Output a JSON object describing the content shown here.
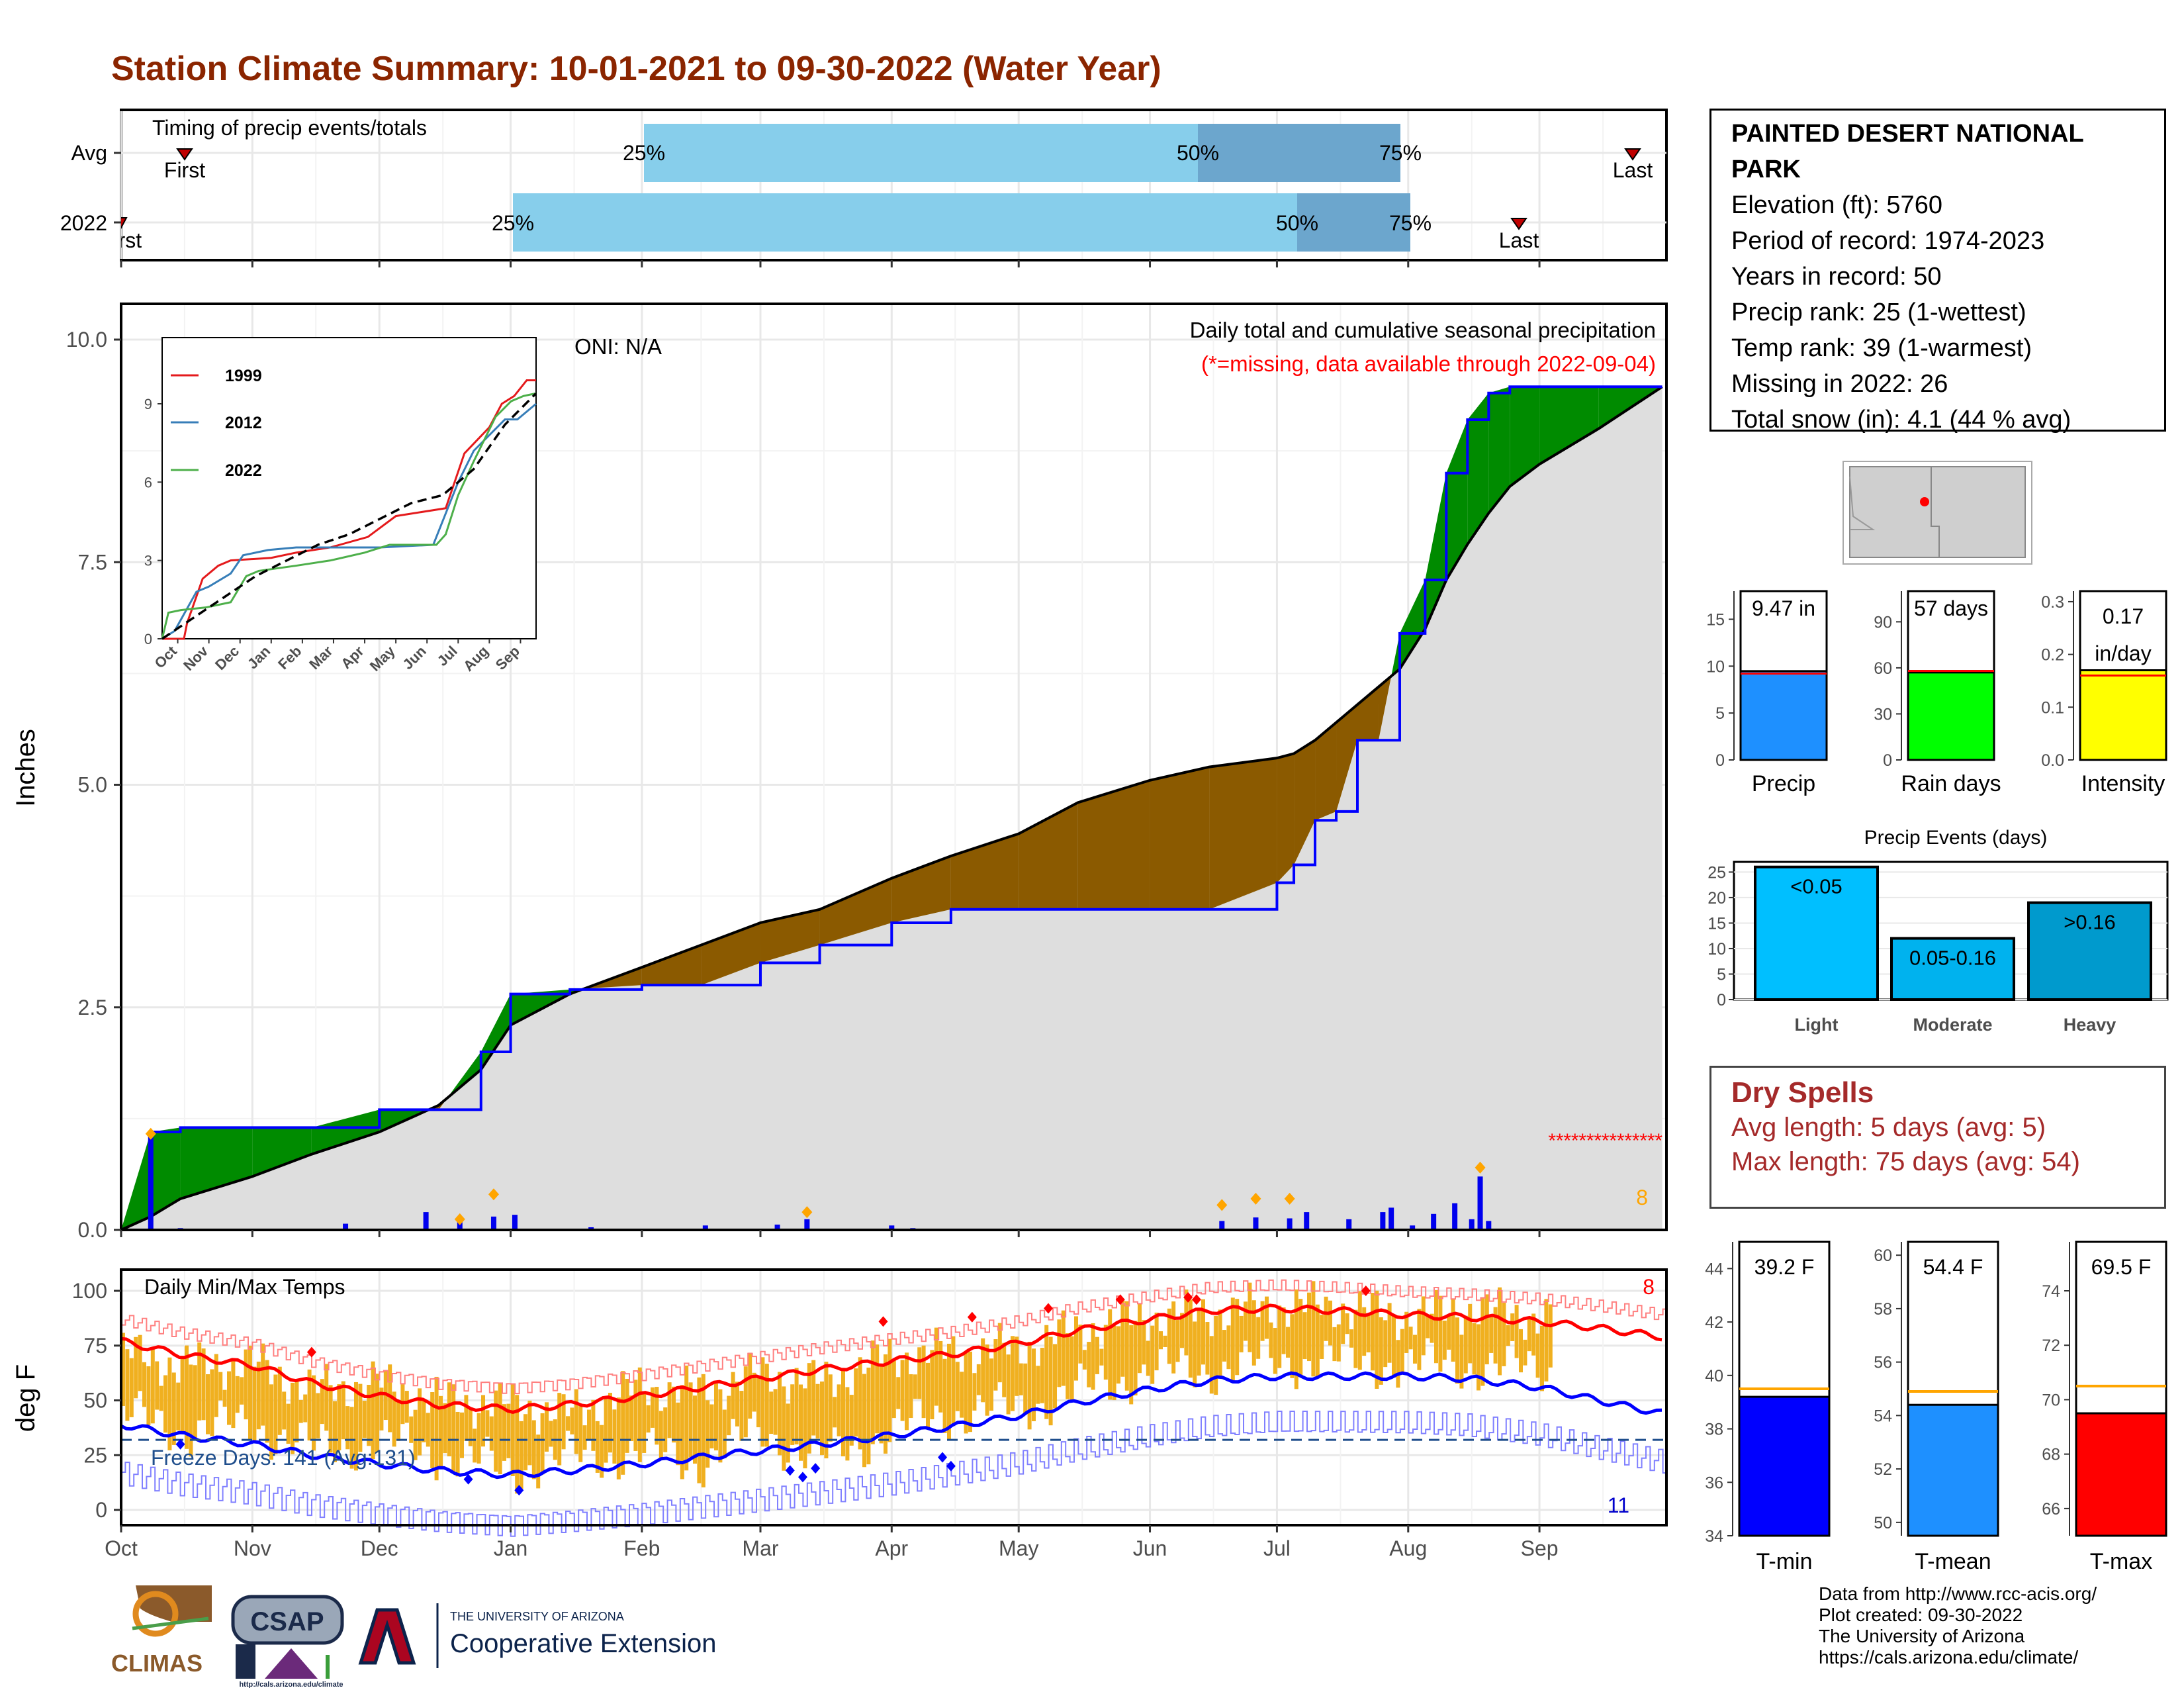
{
  "title": "Station Climate Summary: 10-01-2021 to 09-30-2022 (Water Year)",
  "timing": {
    "label": "Timing of precip events/totals",
    "rows": [
      "Avg",
      "2022"
    ],
    "avg": {
      "first": "First",
      "last": "Last",
      "p25": "25%",
      "p50": "50%",
      "p75": "75%"
    },
    "y2022": {
      "first": "First",
      "last": "Last",
      "p25": "25%",
      "p50": "50%",
      "p75": "75%"
    },
    "avg_dates": {
      "first": "2021-10-16",
      "p25": "2022-02-01",
      "p50": "2022-06-10",
      "p75": "2022-07-30",
      "last": "2022-09-21"
    },
    "y2022_dates": {
      "first": "2021-10-01",
      "p25": "2022-01-01",
      "p50": "2022-07-04",
      "p75": "2022-08-01",
      "last": "2022-08-27"
    }
  },
  "precip_panel": {
    "ylabel": "Inches",
    "yticks": [
      "0.0",
      "2.5",
      "5.0",
      "7.5",
      "10.0"
    ],
    "caption": "Daily total and cumulative seasonal precipitation",
    "missing_note": "(*=missing, data available through 2022-09-04)",
    "oni": "ONI: N/A",
    "extreme_count": "8"
  },
  "inset": {
    "years": [
      "1999",
      "2012",
      "2022"
    ],
    "colors": [
      "#e41a1c",
      "#377eb8",
      "#4daf4a"
    ],
    "yticks": [
      "0",
      "3",
      "6",
      "9"
    ],
    "months": [
      "Oct",
      "Nov",
      "Dec",
      "Jan",
      "Feb",
      "Mar",
      "Apr",
      "May",
      "Jun",
      "Jul",
      "Aug",
      "Sep"
    ]
  },
  "temp_panel": {
    "label": "Daily Min/Max Temps",
    "ylabel": "deg F",
    "yticks": [
      "0",
      "25",
      "50",
      "75",
      "100"
    ],
    "freeze_text": "Freeze Days: 141 (Avg:131)",
    "max_count": "8",
    "min_count": "11"
  },
  "x_months": [
    "Oct",
    "Nov",
    "Dec",
    "Jan",
    "Feb",
    "Mar",
    "Apr",
    "May",
    "Jun",
    "Jul",
    "Aug",
    "Sep"
  ],
  "station": {
    "name": "PAINTED DESERT NATIONAL PARK",
    "elevation": "Elevation (ft): 5760",
    "period": "Period of record: 1974-2023",
    "years": "Years in record: 50",
    "precip_rank": "Precip rank: 25 (1-wettest)",
    "temp_rank": "Temp rank: 39 (1-warmest)",
    "missing": "Missing in 2022: 26",
    "snow": "Total snow (in): 4.1 (44 % avg)"
  },
  "mini_bars": {
    "precip": {
      "label": "Precip",
      "value_text": "9.47 in",
      "yticks": [
        "0",
        "5",
        "10",
        "15"
      ]
    },
    "rain_days": {
      "label": "Rain days",
      "value_text": "57 days",
      "yticks": [
        "0",
        "30",
        "60",
        "90"
      ]
    },
    "intensity": {
      "label": "Intensity",
      "value_text_1": "0.17",
      "value_text_2": "in/day",
      "yticks": [
        "0.0",
        "0.1",
        "0.2",
        "0.3"
      ]
    }
  },
  "events": {
    "title": "Precip Events (days)",
    "yticks": [
      "0",
      "5",
      "10",
      "15",
      "20",
      "25"
    ],
    "bars": [
      {
        "label": "Light",
        "inner": "<0.05",
        "value": 26
      },
      {
        "label": "Moderate",
        "inner": "0.05-0.16",
        "value": 12
      },
      {
        "label": "Heavy",
        "inner": ">0.16",
        "value": 19
      }
    ]
  },
  "dry_spells": {
    "title": "Dry Spells",
    "avg": "Avg length: 5 days (avg: 5)",
    "max": "Max length: 75 days (avg: 54)"
  },
  "temp_bars": {
    "tmin": {
      "label": "T-min",
      "value_text": "39.2 F",
      "yticks": [
        "34",
        "36",
        "38",
        "40",
        "42",
        "44"
      ]
    },
    "tmean": {
      "label": "T-mean",
      "value_text": "54.4 F",
      "yticks": [
        "50",
        "52",
        "54",
        "56",
        "58",
        "60"
      ]
    },
    "tmax": {
      "label": "T-max",
      "value_text": "69.5 F",
      "yticks": [
        "66",
        "68",
        "70",
        "72",
        "74"
      ]
    }
  },
  "credits": {
    "line1": "Data from http://www.rcc-acis.org/",
    "line2": "Plot created: 09-30-2022",
    "line3": "The University of Arizona",
    "line4": "https://cals.arizona.edu/climate/"
  },
  "logos": {
    "climas": "CLIMAS",
    "csap": "CSAP",
    "csap_url": "http://cals.arizona.edu/climate",
    "ua_small": "THE UNIVERSITY OF ARIZONA",
    "ua_big": "Cooperative Extension"
  },
  "colors": {
    "title": "#8b2500",
    "above_normal": "#008b00",
    "below_normal": "#8b5a00",
    "cum_line": "#0000ff",
    "normal_fill": "#dedede",
    "timing_light": "#87ceeb",
    "timing_dark": "#6ca6cd",
    "tmax": "#ff0000",
    "tmin": "#0000ff",
    "range": "#f0b020",
    "extreme": "#ffa500"
  },
  "chart_data": [
    {
      "type": "area",
      "title": "Daily total and cumulative seasonal precipitation",
      "ylabel": "Inches",
      "ylim": [
        0,
        10
      ],
      "x_dates": [
        "2021-10-01",
        "2021-10-08",
        "2021-10-15",
        "2021-11-01",
        "2021-11-15",
        "2021-12-01",
        "2021-12-15",
        "2021-12-25",
        "2022-01-01",
        "2022-01-15",
        "2022-02-01",
        "2022-02-15",
        "2022-03-01",
        "2022-03-15",
        "2022-04-01",
        "2022-04-15",
        "2022-05-01",
        "2022-05-15",
        "2022-06-01",
        "2022-06-15",
        "2022-07-01",
        "2022-07-05",
        "2022-07-10",
        "2022-07-15",
        "2022-07-20",
        "2022-07-25",
        "2022-07-30",
        "2022-08-05",
        "2022-08-10",
        "2022-08-15",
        "2022-08-20",
        "2022-08-25",
        "2022-09-01",
        "2022-09-15",
        "2022-09-30"
      ],
      "series": [
        {
          "name": "2022",
          "values": [
            0.0,
            1.1,
            1.15,
            1.15,
            1.15,
            1.35,
            1.35,
            2.0,
            2.65,
            2.7,
            2.75,
            2.75,
            3.0,
            3.2,
            3.45,
            3.6,
            3.6,
            3.6,
            3.6,
            3.6,
            3.9,
            4.1,
            4.6,
            4.7,
            5.5,
            5.5,
            6.7,
            7.3,
            8.5,
            9.1,
            9.4,
            9.47,
            9.47,
            9.47,
            9.47
          ]
        },
        {
          "name": "Normal",
          "values": [
            0.0,
            0.15,
            0.35,
            0.6,
            0.85,
            1.1,
            1.4,
            1.8,
            2.3,
            2.65,
            2.95,
            3.2,
            3.45,
            3.6,
            3.95,
            4.2,
            4.45,
            4.8,
            5.05,
            5.2,
            5.3,
            5.35,
            5.5,
            5.7,
            5.9,
            6.1,
            6.3,
            6.75,
            7.3,
            7.7,
            8.05,
            8.35,
            8.6,
            9.0,
            9.47
          ]
        }
      ],
      "daily_dates": [
        "2021-10-08",
        "2021-10-15",
        "2021-11-23",
        "2021-12-12",
        "2021-12-20",
        "2021-12-28",
        "2022-01-02",
        "2022-01-20",
        "2022-02-16",
        "2022-03-05",
        "2022-03-12",
        "2022-04-01",
        "2022-04-06",
        "2022-06-18",
        "2022-06-26",
        "2022-07-04",
        "2022-07-08",
        "2022-07-18",
        "2022-07-26",
        "2022-07-28",
        "2022-08-02",
        "2022-08-07",
        "2022-08-12",
        "2022-08-16",
        "2022-08-18",
        "2022-08-20"
      ],
      "daily_values": [
        1.08,
        0.02,
        0.07,
        0.2,
        0.12,
        0.15,
        0.17,
        0.03,
        0.05,
        0.06,
        0.12,
        0.05,
        0.02,
        0.1,
        0.14,
        0.13,
        0.2,
        0.12,
        0.2,
        0.25,
        0.05,
        0.18,
        0.3,
        0.12,
        0.6,
        0.1
      ]
    },
    {
      "type": "bar",
      "title": "Precip Events (days)",
      "categories": [
        "Light",
        "Moderate",
        "Heavy"
      ],
      "values": [
        26,
        12,
        19
      ],
      "ylim": [
        0,
        27
      ]
    },
    {
      "type": "bar",
      "categories": [
        "Precip",
        "Rain days",
        "Intensity",
        "T-min",
        "T-mean",
        "T-max"
      ],
      "values": [
        9.47,
        57,
        0.17,
        39.2,
        54.4,
        69.5
      ],
      "normals": [
        9.2,
        58,
        0.16,
        39.5,
        54.9,
        70.5
      ]
    },
    {
      "type": "line",
      "title": "Daily Min/Max Temps",
      "ylabel": "deg F",
      "ylim": [
        -5,
        105
      ],
      "x_dates": [
        "2021-10-01",
        "2021-10-15",
        "2021-11-01",
        "2021-11-15",
        "2021-12-01",
        "2021-12-15",
        "2022-01-01",
        "2022-01-15",
        "2022-02-01",
        "2022-02-15",
        "2022-03-01",
        "2022-03-15",
        "2022-04-01",
        "2022-04-15",
        "2022-05-01",
        "2022-05-15",
        "2022-06-01",
        "2022-06-15",
        "2022-07-01",
        "2022-07-15",
        "2022-08-01",
        "2022-08-15",
        "2022-09-01",
        "2022-09-15",
        "2022-09-30"
      ],
      "series": [
        {
          "name": "Tmax normal",
          "values": [
            77,
            71,
            66,
            58,
            52,
            48,
            46,
            48,
            52,
            56,
            60,
            64,
            68,
            71,
            76,
            82,
            87,
            91,
            92,
            91,
            89,
            88,
            86,
            83,
            79
          ]
        },
        {
          "name": "Tmin normal",
          "values": [
            39,
            34,
            30,
            25,
            21,
            18,
            16,
            18,
            21,
            24,
            27,
            30,
            34,
            38,
            43,
            49,
            55,
            59,
            61,
            61,
            61,
            60,
            56,
            50,
            44
          ]
        },
        {
          "name": "Daily Tmax",
          "values": [
            72,
            66,
            67,
            55,
            58,
            50,
            48,
            44,
            56,
            54,
            62,
            58,
            70,
            72,
            74,
            82,
            88,
            90,
            93,
            93,
            88,
            92,
            88,
            null,
            null
          ]
        },
        {
          "name": "Daily Tmin",
          "values": [
            38,
            30,
            33,
            22,
            25,
            20,
            12,
            18,
            20,
            16,
            30,
            17,
            30,
            38,
            40,
            48,
            57,
            58,
            62,
            62,
            60,
            60,
            58,
            null,
            null
          ]
        }
      ]
    }
  ]
}
